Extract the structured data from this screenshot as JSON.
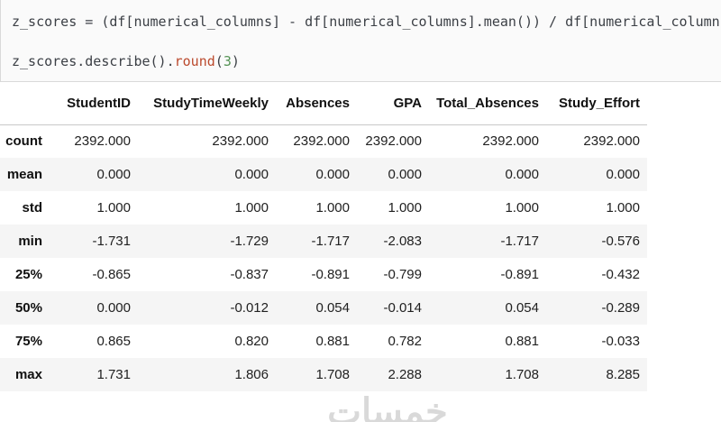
{
  "code_cell": {
    "token_colors": {
      "default": "#3b3f45",
      "function": "#bb4a2d",
      "number": "#559355"
    },
    "lines": [
      {
        "segments": [
          {
            "type": "default",
            "text": "z_scores = (df[numerical_columns] - df[numerical_columns].mean()) / df[numerical_columns"
          }
        ]
      },
      {
        "segments": [
          {
            "type": "default",
            "text": "z_scores.describe()."
          },
          {
            "type": "function",
            "text": "round"
          },
          {
            "type": "default",
            "text": "("
          },
          {
            "type": "number",
            "text": "3"
          },
          {
            "type": "default",
            "text": ")"
          }
        ]
      }
    ]
  },
  "table": {
    "columns": [
      "StudentID",
      "StudyTimeWeekly",
      "Absences",
      "GPA",
      "Total_Absences",
      "Study_Effort"
    ],
    "rows": [
      {
        "index": "count",
        "values": [
          "2392.000",
          "2392.000",
          "2392.000",
          "2392.000",
          "2392.000",
          "2392.000"
        ]
      },
      {
        "index": "mean",
        "values": [
          "0.000",
          "0.000",
          "0.000",
          "0.000",
          "0.000",
          "0.000"
        ]
      },
      {
        "index": "std",
        "values": [
          "1.000",
          "1.000",
          "1.000",
          "1.000",
          "1.000",
          "1.000"
        ]
      },
      {
        "index": "min",
        "values": [
          "-1.731",
          "-1.729",
          "-1.717",
          "-2.083",
          "-1.717",
          "-0.576"
        ]
      },
      {
        "index": "25%",
        "values": [
          "-0.865",
          "-0.837",
          "-0.891",
          "-0.799",
          "-0.891",
          "-0.432"
        ]
      },
      {
        "index": "50%",
        "values": [
          "0.000",
          "-0.012",
          "0.054",
          "-0.014",
          "0.054",
          "-0.289"
        ]
      },
      {
        "index": "75%",
        "values": [
          "0.865",
          "0.820",
          "0.881",
          "0.782",
          "0.881",
          "-0.033"
        ]
      },
      {
        "index": "max",
        "values": [
          "1.731",
          "1.806",
          "1.708",
          "2.288",
          "1.708",
          "8.285"
        ]
      }
    ]
  },
  "watermark": {
    "text": "خمسات"
  }
}
